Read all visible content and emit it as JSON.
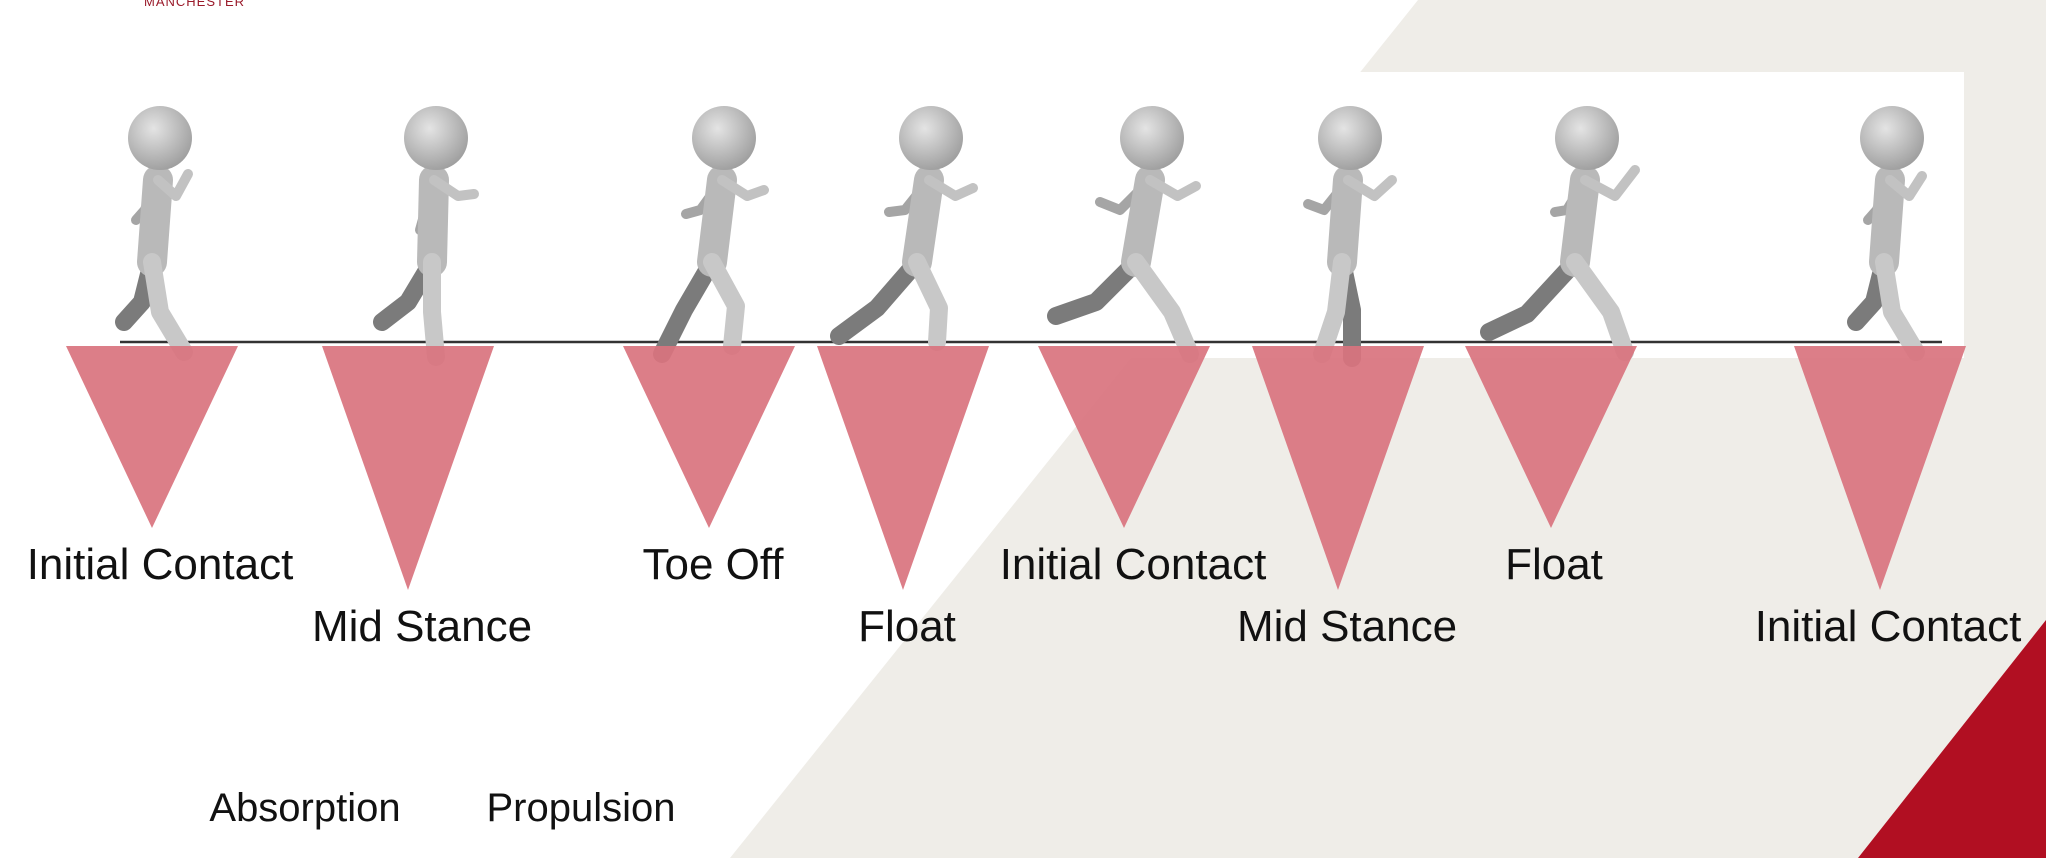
{
  "brand": {
    "logo_text": "MANCHESTER"
  },
  "colors": {
    "marker": "#d9737e",
    "background_shape": "#efede8",
    "accent": "#b10f22",
    "ground_line": "#333333",
    "figure": "#b9b9b9",
    "figure_dark": "#7b7b7b"
  },
  "phases": [
    {
      "label": "Initial Contact",
      "row": "upper"
    },
    {
      "label": "Mid Stance",
      "row": "lower"
    },
    {
      "label": "Toe Off",
      "row": "upper"
    },
    {
      "label": "Float",
      "row": "lower"
    },
    {
      "label": "Initial Contact",
      "row": "upper"
    },
    {
      "label": "Mid Stance",
      "row": "lower"
    },
    {
      "label": "Float",
      "row": "upper"
    },
    {
      "label": "Initial Contact",
      "row": "lower"
    }
  ],
  "phase_groups": {
    "absorption": "Absorption",
    "propulsion": "Propulsion"
  }
}
